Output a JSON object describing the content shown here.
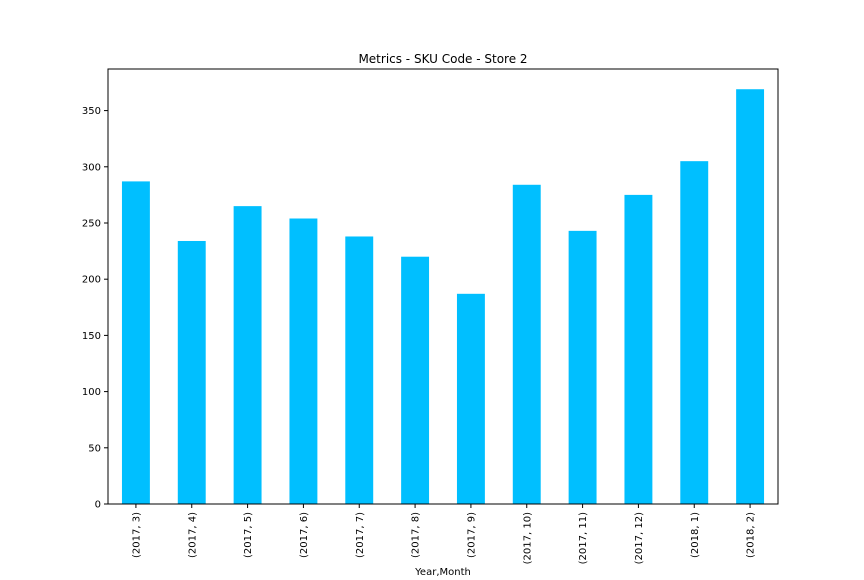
{
  "chart_data": {
    "type": "bar",
    "title": "Metrics - SKU Code - Store 2",
    "xlabel": "Year,Month",
    "ylabel": "",
    "categories": [
      "(2017, 3)",
      "(2017, 4)",
      "(2017, 5)",
      "(2017, 6)",
      "(2017, 7)",
      "(2017, 8)",
      "(2017, 9)",
      "(2017, 10)",
      "(2017, 11)",
      "(2017, 12)",
      "(2018, 1)",
      "(2018, 2)"
    ],
    "values": [
      287,
      234,
      265,
      254,
      238,
      220,
      187,
      284,
      243,
      275,
      305,
      369
    ],
    "ylim": [
      0,
      387
    ],
    "yticks": [
      0,
      50,
      100,
      150,
      200,
      250,
      300,
      350
    ],
    "bar_color": "#00bfff",
    "grid": false,
    "legend": "none"
  }
}
